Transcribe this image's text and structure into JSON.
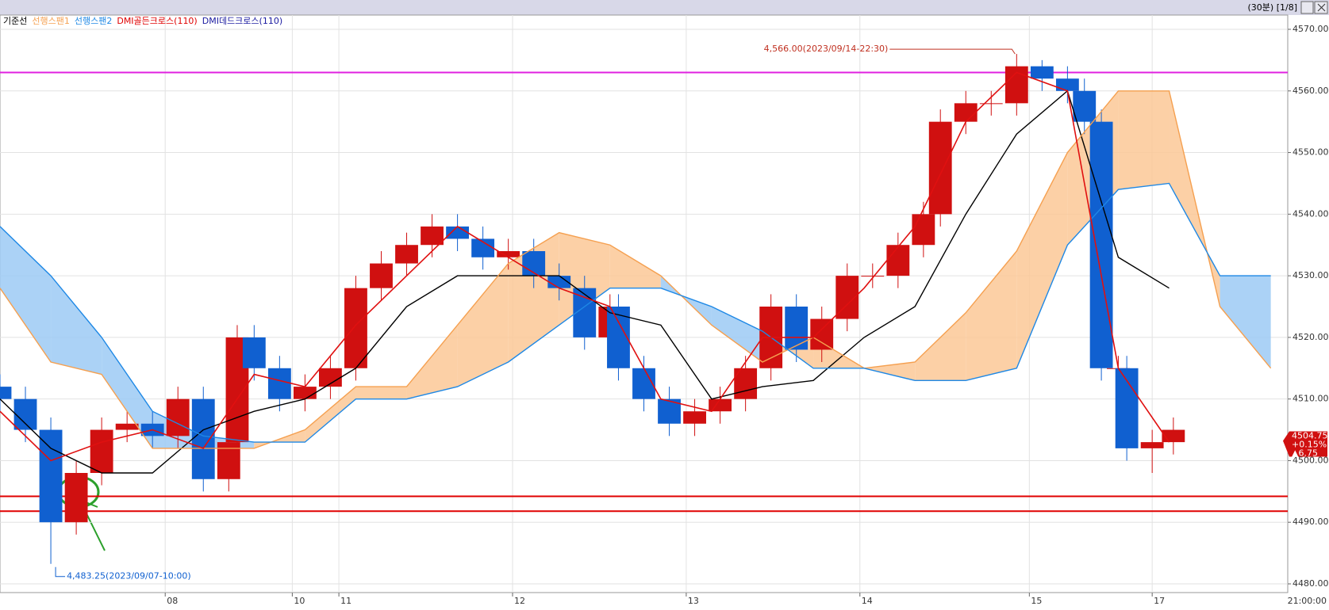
{
  "chart_data": {
    "type": "candlestick",
    "status": "(30분) [1/8]",
    "indicators": [
      {
        "name": "DMI골든크로스(110)",
        "color": "#e00000"
      },
      {
        "name": "DMI데드크로스(110)",
        "color": "#1a1aa0"
      }
    ],
    "xlim": [
      0,
      304
    ],
    "xticks": [
      {
        "value": 39,
        "label": "08"
      },
      {
        "value": 69,
        "label": "10"
      },
      {
        "value": 80,
        "label": "11"
      },
      {
        "value": 121,
        "label": "12"
      },
      {
        "value": 162,
        "label": "13"
      },
      {
        "value": 203,
        "label": "14"
      },
      {
        "value": 243,
        "label": "15"
      },
      {
        "value": 272,
        "label": "17"
      }
    ],
    "time_label": "21:00:00",
    "ylim": [
      4480,
      4570
    ],
    "yticks": [
      {
        "value": 4480,
        "label": "4480.00"
      },
      {
        "value": 4490,
        "label": "4490.00"
      },
      {
        "value": 4500,
        "label": "4500.00"
      },
      {
        "value": 4510,
        "label": "4510.00"
      },
      {
        "value": 4520,
        "label": "4520.00"
      },
      {
        "value": 4530,
        "label": "4530.00"
      },
      {
        "value": 4540,
        "label": "4540.00"
      },
      {
        "value": 4550,
        "label": "4550.00"
      },
      {
        "value": 4560,
        "label": "4560.00"
      },
      {
        "value": 4570,
        "label": "4570.00"
      }
    ],
    "grid": true,
    "up_color": "#d01010",
    "down_color": "#1060d0",
    "candles": {
      "x": [
        0,
        6,
        12,
        18,
        24,
        30,
        36,
        42,
        48,
        54,
        56,
        60,
        66,
        72,
        78,
        84,
        90,
        96,
        102,
        108,
        114,
        120,
        126,
        132,
        138,
        144,
        146,
        152,
        158,
        164,
        170,
        176,
        182,
        188,
        194,
        200,
        206,
        212,
        218,
        222,
        228,
        234,
        240,
        246,
        252,
        256,
        260,
        264,
        266,
        272,
        277
      ],
      "open": [
        4512,
        4510,
        4505,
        4490,
        4498,
        4505,
        4506,
        4504,
        4510,
        4497,
        4503,
        4520,
        4515,
        4510,
        4512,
        4515,
        4528,
        4532,
        4535,
        4538,
        4536,
        4533,
        4534,
        4530,
        4528,
        4520,
        4525,
        4515,
        4510,
        4506,
        4508,
        4510,
        4515,
        4525,
        4518,
        4523,
        4530,
        4530,
        4535,
        4540,
        4555,
        4558,
        4558,
        4564,
        4562,
        4560,
        4555,
        4515,
        4515,
        4502,
        4503
      ],
      "high": [
        4514,
        4512,
        4507,
        4500,
        4507,
        4508,
        4508,
        4512,
        4512,
        4505,
        4522,
        4522,
        4517,
        4514,
        4517,
        4530,
        4534,
        4537,
        4540,
        4540,
        4538,
        4536,
        4536,
        4532,
        4530,
        4527,
        4527,
        4517,
        4512,
        4510,
        4512,
        4517,
        4527,
        4527,
        4525,
        4532,
        4532,
        4537,
        4542,
        4557,
        4560,
        4560,
        4566,
        4565,
        4564,
        4562,
        4557,
        4517,
        4517,
        4505,
        4507
      ],
      "low": [
        4508,
        4503,
        4483.25,
        4488,
        4496,
        4503,
        4502,
        4502,
        4495,
        4495,
        4501,
        4513,
        4508,
        4508,
        4510,
        4513,
        4526,
        4530,
        4533,
        4534,
        4531,
        4531,
        4528,
        4526,
        4518,
        4518,
        4513,
        4508,
        4504,
        4504,
        4506,
        4508,
        4513,
        4516,
        4516,
        4521,
        4528,
        4528,
        4533,
        4538,
        4553,
        4556,
        4556,
        4560,
        4558,
        4553,
        4513,
        4510,
        4500,
        4498,
        4501
      ],
      "close": [
        4510,
        4505,
        4490,
        4498,
        4505,
        4506,
        4504,
        4510,
        4497,
        4503,
        4520,
        4515,
        4510,
        4512,
        4515,
        4528,
        4532,
        4535,
        4538,
        4536,
        4533,
        4534,
        4530,
        4528,
        4520,
        4525,
        4515,
        4510,
        4506,
        4508,
        4510,
        4515,
        4525,
        4518,
        4523,
        4530,
        4530,
        4535,
        4540,
        4555,
        4558,
        4558,
        4564,
        4562,
        4560,
        4555,
        4515,
        4515,
        4502,
        4503,
        4505
      ]
    },
    "series": [
      {
        "name": "기준선",
        "color": "#000000",
        "x": [
          0,
          12,
          24,
          36,
          48,
          60,
          72,
          84,
          96,
          108,
          120,
          132,
          144,
          156,
          168,
          180,
          192,
          204,
          216,
          228,
          240,
          252,
          264,
          276
        ],
        "values": [
          4510,
          4502,
          4498,
          4498,
          4505,
          4508,
          4510,
          4515,
          4525,
          4530,
          4530,
          4530,
          4524,
          4522,
          4510,
          4512,
          4513,
          4520,
          4525,
          4540,
          4553,
          4560,
          4533,
          4528
        ]
      },
      {
        "name": "선행스팬1",
        "color": "#f5a050",
        "x": [
          0,
          12,
          24,
          36,
          48,
          60,
          72,
          84,
          96,
          108,
          120,
          132,
          144,
          156,
          168,
          180,
          192,
          204,
          216,
          228,
          240,
          252,
          264,
          276,
          288,
          300
        ],
        "values": [
          4528,
          4516,
          4514,
          4502,
          4502,
          4502,
          4505,
          4512,
          4512,
          4522,
          4532,
          4537,
          4535,
          4530,
          4522,
          4516,
          4520,
          4515,
          4516,
          4524,
          4534,
          4550,
          4560,
          4560,
          4525,
          4515
        ]
      },
      {
        "name": "선행스팬2",
        "color": "#1e88e5",
        "x": [
          0,
          12,
          24,
          36,
          48,
          60,
          72,
          84,
          96,
          108,
          120,
          132,
          144,
          156,
          168,
          180,
          192,
          204,
          216,
          228,
          240,
          252,
          264,
          276,
          288,
          300
        ],
        "values": [
          4538,
          4530,
          4520,
          4508,
          4504,
          4503,
          4503,
          4510,
          4510,
          4512,
          4516,
          4522,
          4528,
          4528,
          4525,
          4521,
          4515,
          4515,
          4513,
          4513,
          4515,
          4535,
          4544,
          4545,
          4530,
          4530
        ]
      },
      {
        "color": "#e01010",
        "x": [
          0,
          12,
          24,
          36,
          48,
          60,
          72,
          84,
          96,
          108,
          120,
          132,
          144,
          156,
          168,
          180,
          192,
          204,
          216,
          228,
          240,
          252,
          264,
          276
        ],
        "values": [
          4508,
          4500,
          4503,
          4505,
          4502,
          4514,
          4512,
          4522,
          4530,
          4538,
          4533,
          4528,
          4525,
          4510,
          4508,
          4520,
          4520,
          4528,
          4538,
          4555,
          4563,
          4560,
          4515,
          4503
        ]
      }
    ],
    "hlines": [
      {
        "value": 4563,
        "color": "#e020e0"
      },
      {
        "value": 4494.2,
        "color": "#e00000"
      },
      {
        "value": 4491.8,
        "color": "#e00000"
      }
    ],
    "high_label": "4,566.00(2023/09/14-22:30)",
    "low_label": "4,483.25(2023/09/07-10:00)",
    "last_price": 4504.75,
    "change_pct": "+0.15%",
    "change": "▲6.75"
  }
}
